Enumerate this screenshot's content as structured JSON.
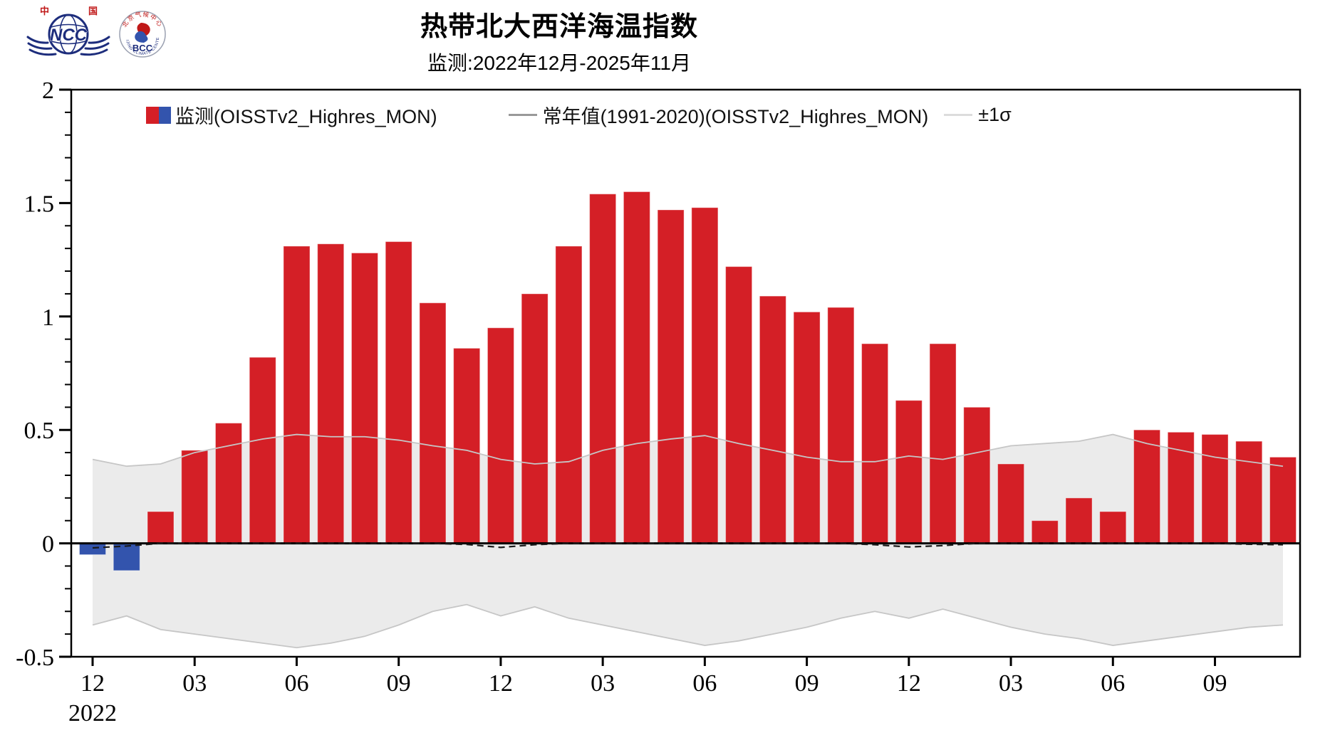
{
  "header": {
    "title": "热带北大西洋海温指数",
    "subtitle": "监测:2022年12月-2025年11月",
    "logos": {
      "ncc": {
        "label": "NCC",
        "top_left": "中",
        "top_right": "国"
      },
      "bcc": {
        "label": "BCC",
        "ring_top": "北京气候中心",
        "ring_bottom": "BEIJING CLIMATE CENTER"
      }
    }
  },
  "legend": [
    {
      "label": "监测(OISSTv2_Highres_MON)",
      "swatch": "red-blue-bar"
    },
    {
      "label": "常年值(1991-2020)(OISSTv2_Highres_MON)",
      "swatch": "gray-line"
    },
    {
      "label": "±1σ",
      "swatch": "light-gray-line"
    }
  ],
  "chart_data": {
    "type": "bar",
    "title": "热带北大西洋海温指数",
    "subtitle": "监测:2022年12月-2025年11月",
    "x_months": [
      "2022-12",
      "2023-01",
      "2023-02",
      "2023-03",
      "2023-04",
      "2023-05",
      "2023-06",
      "2023-07",
      "2023-08",
      "2023-09",
      "2023-10",
      "2023-11",
      "2023-12",
      "2024-01",
      "2024-02",
      "2024-03",
      "2024-04",
      "2024-05",
      "2024-06",
      "2024-07",
      "2024-08",
      "2024-09",
      "2024-10",
      "2024-11",
      "2024-12",
      "2025-01",
      "2025-02",
      "2025-03",
      "2025-04",
      "2025-05",
      "2025-06",
      "2025-07",
      "2025-08",
      "2025-09",
      "2025-10",
      "2025-11"
    ],
    "values": [
      -0.05,
      -0.12,
      0.14,
      0.41,
      0.53,
      0.82,
      1.31,
      1.32,
      1.28,
      1.33,
      1.06,
      0.86,
      0.95,
      1.1,
      1.31,
      1.54,
      1.55,
      1.47,
      1.48,
      1.22,
      1.09,
      1.02,
      1.04,
      0.88,
      0.63,
      0.88,
      0.6,
      0.35,
      0.1,
      0.2,
      0.14,
      0.5,
      0.49,
      0.48,
      0.45,
      0.38
    ],
    "climatology": [
      -0.02,
      -0.012,
      0,
      0,
      0,
      0,
      0,
      0,
      0,
      0,
      0,
      -0.005,
      -0.018,
      -0.006,
      0,
      0,
      0,
      0,
      0,
      0,
      0,
      0,
      0,
      -0.006,
      -0.016,
      -0.01,
      0,
      0,
      0,
      0,
      0,
      0,
      0,
      0,
      -0.004,
      -0.006
    ],
    "sigma_upper": [
      0.37,
      0.34,
      0.35,
      0.4,
      0.43,
      0.46,
      0.48,
      0.47,
      0.47,
      0.455,
      0.43,
      0.41,
      0.37,
      0.35,
      0.36,
      0.41,
      0.44,
      0.46,
      0.475,
      0.44,
      0.41,
      0.38,
      0.36,
      0.36,
      0.385,
      0.37,
      0.4,
      0.43,
      0.44,
      0.45,
      0.48,
      0.44,
      0.41,
      0.38,
      0.36,
      0.34
    ],
    "sigma_lower": [
      -0.36,
      -0.32,
      -0.38,
      -0.4,
      -0.42,
      -0.44,
      -0.46,
      -0.44,
      -0.41,
      -0.36,
      -0.3,
      -0.27,
      -0.32,
      -0.28,
      -0.33,
      -0.36,
      -0.39,
      -0.42,
      -0.45,
      -0.43,
      -0.4,
      -0.37,
      -0.33,
      -0.3,
      -0.33,
      -0.29,
      -0.33,
      -0.37,
      -0.4,
      -0.42,
      -0.45,
      -0.43,
      -0.41,
      -0.39,
      -0.37,
      -0.36
    ],
    "ylim": [
      -0.5,
      2
    ],
    "grid": false,
    "legend_position": "top-inside",
    "y_axis": {
      "labels": [
        "2",
        "1.5",
        "1",
        "0.5",
        "0",
        "-0.5"
      ],
      "values": [
        2,
        1.5,
        1,
        0.5,
        0,
        -0.5
      ],
      "minor_step": 0.1
    },
    "x_axis": {
      "ticks": [
        {
          "month_index": 0,
          "label": "12",
          "sublabel": "2022"
        },
        {
          "month_index": 3,
          "label": "03"
        },
        {
          "month_index": 6,
          "label": "06"
        },
        {
          "month_index": 9,
          "label": "09"
        },
        {
          "month_index": 12,
          "label": "12"
        },
        {
          "month_index": 15,
          "label": "03"
        },
        {
          "month_index": 18,
          "label": "06"
        },
        {
          "month_index": 21,
          "label": "09"
        },
        {
          "month_index": 24,
          "label": "12"
        },
        {
          "month_index": 27,
          "label": "03"
        },
        {
          "month_index": 30,
          "label": "06"
        },
        {
          "month_index": 33,
          "label": "09"
        }
      ]
    },
    "style": {
      "bar_positive": "#d41f26",
      "bar_negative": "#3354ad",
      "band_fill": "#ebebeb",
      "band_edge": "#c6c6c6",
      "climatology_line": "#1a1a1a",
      "axis_color": "#000000"
    }
  }
}
